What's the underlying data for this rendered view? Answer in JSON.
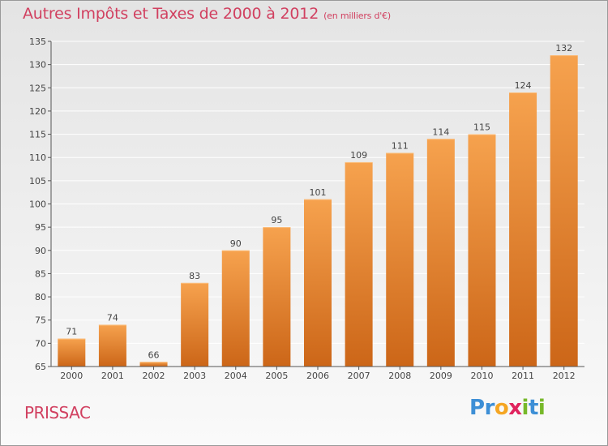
{
  "header": {
    "title": "Autres Impôts et Taxes de 2000 à 2012",
    "subtitle": "(en milliers d'€)"
  },
  "footer": {
    "commune": "PRISSAC",
    "brand_letters": [
      "P",
      "r",
      "o",
      "x",
      "i",
      "t",
      "i"
    ],
    "brand_colors": [
      "#3d8fd6",
      "#3d8fd6",
      "#f5a623",
      "#e0245e",
      "#77b82a",
      "#3d8fd6",
      "#77b82a"
    ]
  },
  "colors": {
    "bar_top": "#f6a24e",
    "bar_bottom": "#cc6618",
    "axis": "#555555",
    "grid": "#ffffff",
    "text": "#444444",
    "title": "#d14060"
  },
  "chart_data": {
    "type": "bar",
    "categories": [
      "2000",
      "2001",
      "2002",
      "2003",
      "2004",
      "2005",
      "2006",
      "2007",
      "2008",
      "2009",
      "2010",
      "2011",
      "2012"
    ],
    "values": [
      71,
      74,
      66,
      83,
      90,
      95,
      101,
      109,
      111,
      114,
      115,
      124,
      132
    ],
    "ylim": [
      65,
      135
    ],
    "yticks": [
      65,
      70,
      75,
      80,
      85,
      90,
      95,
      100,
      105,
      110,
      115,
      120,
      125,
      130,
      135
    ],
    "grid": true
  }
}
